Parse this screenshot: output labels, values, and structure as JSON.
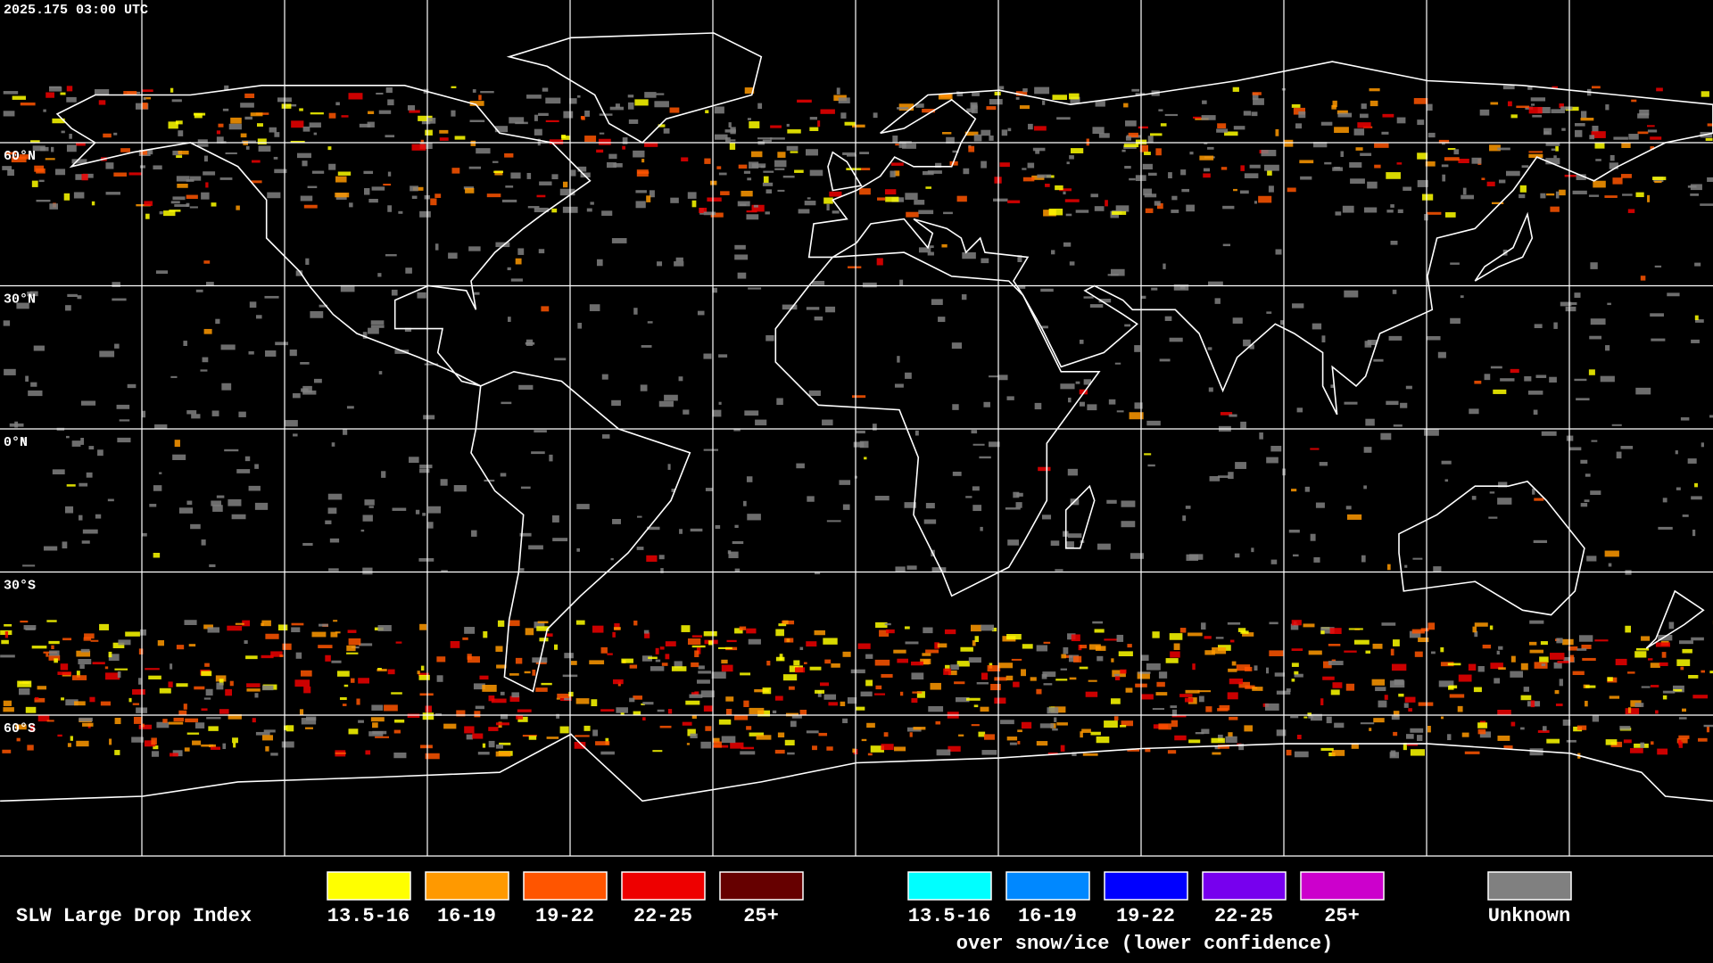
{
  "header": {
    "timestamp": "2025.175 03:00 UTC"
  },
  "map": {
    "latitude_labels": [
      "60°N",
      "30°N",
      "0°N",
      "30°S",
      "60°S"
    ]
  },
  "legend": {
    "title": "SLW Large Drop Index",
    "groups": [
      {
        "items": [
          {
            "label": "13.5-16",
            "color": "#ffff00"
          },
          {
            "label": "16-19",
            "color": "#ff9900"
          },
          {
            "label": "19-22",
            "color": "#ff5500"
          },
          {
            "label": "22-25",
            "color": "#ee0000"
          },
          {
            "label": "25+",
            "color": "#660000"
          }
        ]
      },
      {
        "items": [
          {
            "label": "13.5-16",
            "color": "#00ffff"
          },
          {
            "label": "16-19",
            "color": "#0088ff"
          },
          {
            "label": "19-22",
            "color": "#0000ff"
          },
          {
            "label": "22-25",
            "color": "#7700ee"
          },
          {
            "label": "25+",
            "color": "#cc00cc"
          }
        ],
        "caption": "over snow/ice (lower confidence)"
      }
    ],
    "unknown": {
      "label": "Unknown",
      "color": "#808080"
    }
  }
}
